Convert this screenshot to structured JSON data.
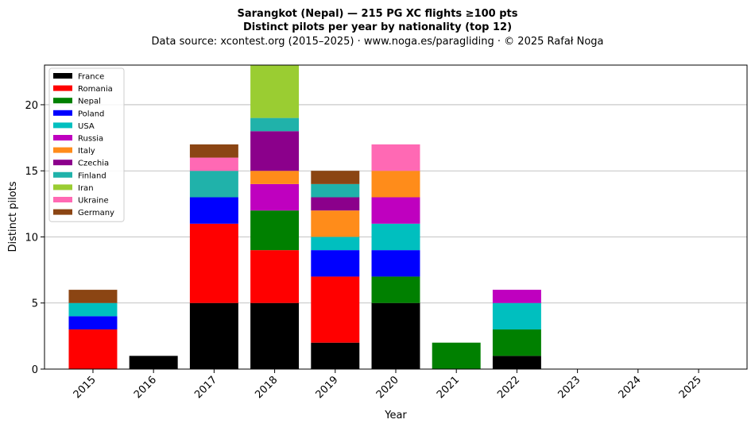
{
  "chart_data": {
    "type": "bar",
    "stacked": true,
    "title_line1": "Sarangkot (Nepal)  —  215 PG XC flights ≥100 pts",
    "title_line2": "Distinct pilots per year by nationality (top 12)",
    "subtitle": "Data source: xcontest.org (2015–2025)  ·  www.noga.es/paragliding  ·  © 2025 Rafał Noga",
    "xlabel": "Year",
    "ylabel": "Distinct pilots",
    "ylim": [
      0,
      23
    ],
    "yticks": [
      0,
      5,
      10,
      15,
      20
    ],
    "grid": "horizontal",
    "legend_position": "top-left",
    "categories": [
      "2015",
      "2016",
      "2017",
      "2018",
      "2019",
      "2020",
      "2021",
      "2022",
      "2023",
      "2024",
      "2025"
    ],
    "series": [
      {
        "name": "France",
        "color": "#000000",
        "values": [
          0,
          1,
          5,
          5,
          2,
          5,
          0,
          1,
          0,
          0,
          0
        ]
      },
      {
        "name": "Romania",
        "color": "#ff0000",
        "values": [
          3,
          0,
          6,
          4,
          5,
          0,
          0,
          0,
          0,
          0,
          0
        ]
      },
      {
        "name": "Nepal",
        "color": "#008000",
        "values": [
          0,
          0,
          0,
          3,
          0,
          2,
          2,
          2,
          0,
          0,
          0
        ]
      },
      {
        "name": "Poland",
        "color": "#0000ff",
        "values": [
          1,
          0,
          2,
          0,
          2,
          2,
          0,
          0,
          0,
          0,
          0
        ]
      },
      {
        "name": "USA",
        "color": "#00bfbf",
        "values": [
          1,
          0,
          0,
          0,
          1,
          2,
          0,
          2,
          0,
          0,
          0
        ]
      },
      {
        "name": "Russia",
        "color": "#bf00bf",
        "values": [
          0,
          0,
          0,
          2,
          0,
          2,
          0,
          1,
          0,
          0,
          0
        ]
      },
      {
        "name": "Italy",
        "color": "#ff8c1a",
        "values": [
          0,
          0,
          0,
          1,
          2,
          2,
          0,
          0,
          0,
          0,
          0
        ]
      },
      {
        "name": "Czechia",
        "color": "#8b008b",
        "values": [
          0,
          0,
          0,
          3,
          1,
          0,
          0,
          0,
          0,
          0,
          0
        ]
      },
      {
        "name": "Finland",
        "color": "#20b2aa",
        "values": [
          0,
          0,
          2,
          1,
          1,
          0,
          0,
          0,
          0,
          0,
          0
        ]
      },
      {
        "name": "Iran",
        "color": "#9acd32",
        "values": [
          0,
          0,
          0,
          4,
          0,
          0,
          0,
          0,
          0,
          0,
          0
        ]
      },
      {
        "name": "Ukraine",
        "color": "#ff69b4",
        "values": [
          0,
          0,
          1,
          0,
          0,
          2,
          0,
          0,
          0,
          0,
          0
        ]
      },
      {
        "name": "Germany",
        "color": "#8b4513",
        "values": [
          1,
          0,
          1,
          0,
          1,
          0,
          0,
          0,
          0,
          0,
          0
        ]
      }
    ]
  }
}
